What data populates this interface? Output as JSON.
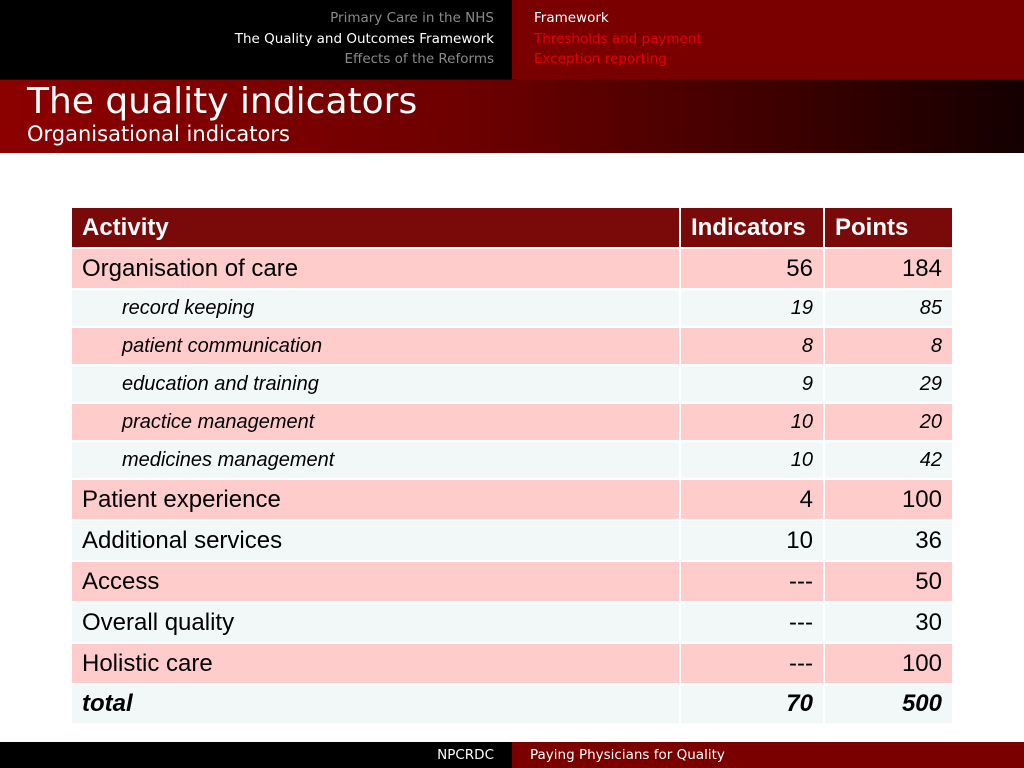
{
  "nav": {
    "left_items": [
      {
        "label": "Primary Care in the NHS",
        "active": false
      },
      {
        "label": "The Quality and Outcomes Framework",
        "active": true
      },
      {
        "label": "Effects of the Reforms",
        "active": false
      }
    ],
    "right_items": [
      {
        "label": "Framework",
        "active": true
      },
      {
        "label": "Thresholds and payment",
        "active": false
      },
      {
        "label": "Exception reporting",
        "active": false
      }
    ]
  },
  "header": {
    "title": "The quality indicators",
    "subtitle": "Organisational indicators"
  },
  "table": {
    "columns": [
      "Activity",
      "Indicators",
      "Points"
    ],
    "rows": [
      {
        "activity": "Organisation of care",
        "indicators": "56",
        "points": "184",
        "level": "main"
      },
      {
        "activity": "record keeping",
        "indicators": "19",
        "points": "85",
        "level": "sub"
      },
      {
        "activity": "patient communication",
        "indicators": "8",
        "points": "8",
        "level": "sub"
      },
      {
        "activity": "education and training",
        "indicators": "9",
        "points": "29",
        "level": "sub"
      },
      {
        "activity": "practice management",
        "indicators": "10",
        "points": "20",
        "level": "sub"
      },
      {
        "activity": "medicines management",
        "indicators": "10",
        "points": "42",
        "level": "sub"
      },
      {
        "activity": "Patient experience",
        "indicators": "4",
        "points": "100",
        "level": "main"
      },
      {
        "activity": "Additional services",
        "indicators": "10",
        "points": "36",
        "level": "main"
      },
      {
        "activity": "Access",
        "indicators": "---",
        "points": "50",
        "level": "main"
      },
      {
        "activity": "Overall quality",
        "indicators": "---",
        "points": "30",
        "level": "main"
      },
      {
        "activity": "Holistic care",
        "indicators": "---",
        "points": "100",
        "level": "main"
      }
    ],
    "total": {
      "activity": "total",
      "indicators": "70",
      "points": "500"
    }
  },
  "footer": {
    "left": "NPCRDC",
    "right": "Paying Physicians for Quality"
  },
  "colors": {
    "accent_red": "#7a0000",
    "header_row": "#7a0a0a",
    "row_pink": "#ffcccc",
    "row_light": "#f2f7f7",
    "nav_inactive_left": "#8a8a8a",
    "nav_inactive_right": "#e60000"
  }
}
